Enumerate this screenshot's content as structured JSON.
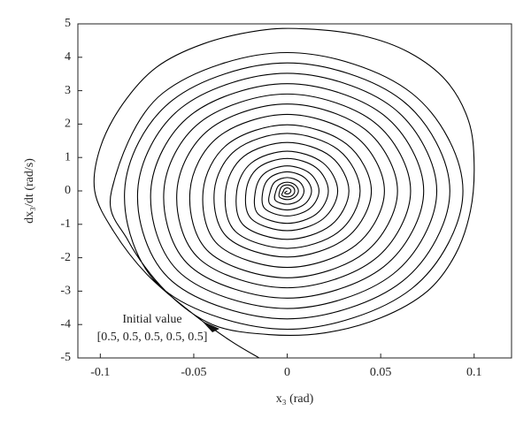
{
  "chart_data": {
    "type": "line",
    "xlabel": "x₃ (rad)",
    "ylabel": "dx₃/dt (rad/s)",
    "annotation": [
      "Initial value",
      "[0.5, 0.5, 0.5, 0.5, 0.5]"
    ],
    "color": "#000000",
    "xlim": [
      -0.112,
      0.12
    ],
    "ylim": [
      -5,
      5
    ],
    "xticks": [
      -0.1,
      -0.05,
      0,
      0.05,
      0.1
    ],
    "yticks": [
      -5,
      -4,
      -3,
      -2,
      -1,
      0,
      1,
      2,
      3,
      4,
      5
    ],
    "x": [
      -0.015,
      -0.03,
      -0.05,
      -0.075,
      -0.093,
      -0.103,
      -0.1,
      -0.088,
      -0.07,
      -0.045,
      -0.015,
      0.01,
      0.04,
      0.065,
      0.085,
      0.097,
      0.1,
      0.098,
      0.09,
      0.075,
      0.05,
      0.02,
      -0.01,
      -0.04,
      -0.065,
      -0.085,
      -0.094,
      -0.0665,
      0,
      0.0665,
      0.094,
      0.0665,
      0,
      -0.0665,
      -0.087,
      -0.0615,
      0,
      0.0615,
      0.087,
      0.0615,
      0,
      -0.0615,
      -0.08,
      -0.0566,
      0,
      0.0566,
      0.08,
      0.0566,
      0,
      -0.0566,
      -0.073,
      -0.0516,
      0,
      0.0516,
      0.073,
      0.0516,
      0,
      -0.0516,
      -0.066,
      -0.0467,
      0,
      0.0467,
      0.066,
      0.0467,
      0,
      -0.0467,
      -0.059,
      -0.0417,
      0,
      0.0417,
      0.059,
      0.0417,
      0,
      -0.0417,
      -0.052,
      -0.0368,
      0,
      0.0368,
      0.052,
      0.0368,
      0,
      -0.0368,
      -0.045,
      -0.0318,
      0,
      0.0318,
      0.045,
      0.0318,
      0,
      -0.0318,
      -0.039,
      -0.0276,
      0,
      0.0276,
      0.039,
      0.0276,
      0,
      -0.0276,
      -0.033,
      -0.0233,
      0,
      0.0233,
      0.033,
      0.0233,
      0,
      -0.0233,
      -0.027,
      -0.0191,
      0,
      0.0191,
      0.027,
      0.0191,
      0,
      -0.0191,
      -0.022,
      -0.0156,
      0,
      0.0156,
      0.022,
      0.0156,
      0,
      -0.0156,
      -0.017,
      -0.012,
      0,
      0.012,
      0.017,
      0.012,
      0,
      -0.012,
      -0.013,
      -0.0092,
      0,
      0.0092,
      0.013,
      0.0092,
      0,
      -0.0092,
      -0.009,
      -0.0064,
      0,
      0.0064,
      0.009,
      0.0064,
      0,
      -0.0064,
      -0.006,
      -0.0042,
      0,
      0.0042,
      0.006,
      0.0042,
      0,
      -0.0042,
      -0.004,
      -0.0028,
      0,
      0.0028,
      0.004,
      0.0028,
      0,
      -0.0028,
      -0.002,
      -0.0014,
      0,
      0.0014,
      0.002,
      0.0014,
      0,
      -0.0014,
      0
    ],
    "values": [
      -5,
      -4.5,
      -3.7,
      -2.5,
      -1.2,
      0,
      1.3,
      2.6,
      3.7,
      4.4,
      4.8,
      4.85,
      4.65,
      4.15,
      3.3,
      2.1,
      0.8,
      -0.6,
      -1.9,
      -3.0,
      -3.8,
      -4.25,
      -4.3,
      -4.0,
      -3.0,
      -1.5,
      0,
      2.93,
      4.14,
      2.93,
      0,
      -2.93,
      -4.14,
      -2.93,
      0,
      2.71,
      3.83,
      2.71,
      0,
      -2.71,
      -3.83,
      -2.71,
      0,
      2.49,
      3.52,
      2.49,
      0,
      -2.49,
      -3.52,
      -2.49,
      0,
      2.27,
      3.21,
      2.27,
      0,
      -2.27,
      -3.21,
      -2.27,
      0,
      2.05,
      2.9,
      2.05,
      0,
      -2.05,
      -2.9,
      -2.05,
      0,
      1.84,
      2.6,
      1.84,
      0,
      -1.84,
      -2.6,
      -1.84,
      0,
      1.62,
      2.29,
      1.62,
      0,
      -1.62,
      -2.29,
      -1.62,
      0,
      1.4,
      1.98,
      1.4,
      0,
      -1.4,
      -1.98,
      -1.4,
      0,
      1.22,
      1.72,
      1.22,
      0,
      -1.22,
      -1.72,
      -1.22,
      0,
      1.03,
      1.45,
      1.03,
      0,
      -1.03,
      -1.45,
      -1.03,
      0,
      0.84,
      1.19,
      0.84,
      0,
      -0.84,
      -1.19,
      -0.84,
      0,
      0.69,
      0.97,
      0.69,
      0,
      -0.69,
      -0.97,
      -0.69,
      0,
      0.53,
      0.75,
      0.53,
      0,
      -0.53,
      -0.75,
      -0.53,
      0,
      0.4,
      0.57,
      0.4,
      0,
      -0.4,
      -0.57,
      -0.4,
      0,
      0.28,
      0.4,
      0.28,
      0,
      -0.28,
      -0.4,
      -0.28,
      0,
      0.18,
      0.26,
      0.18,
      0,
      -0.18,
      -0.26,
      -0.18,
      0,
      0.13,
      0.18,
      0.13,
      0,
      -0.13,
      -0.18,
      -0.13,
      0,
      0.06,
      0.09,
      0.06,
      0,
      -0.06,
      -0.09,
      -0.06,
      0
    ]
  }
}
